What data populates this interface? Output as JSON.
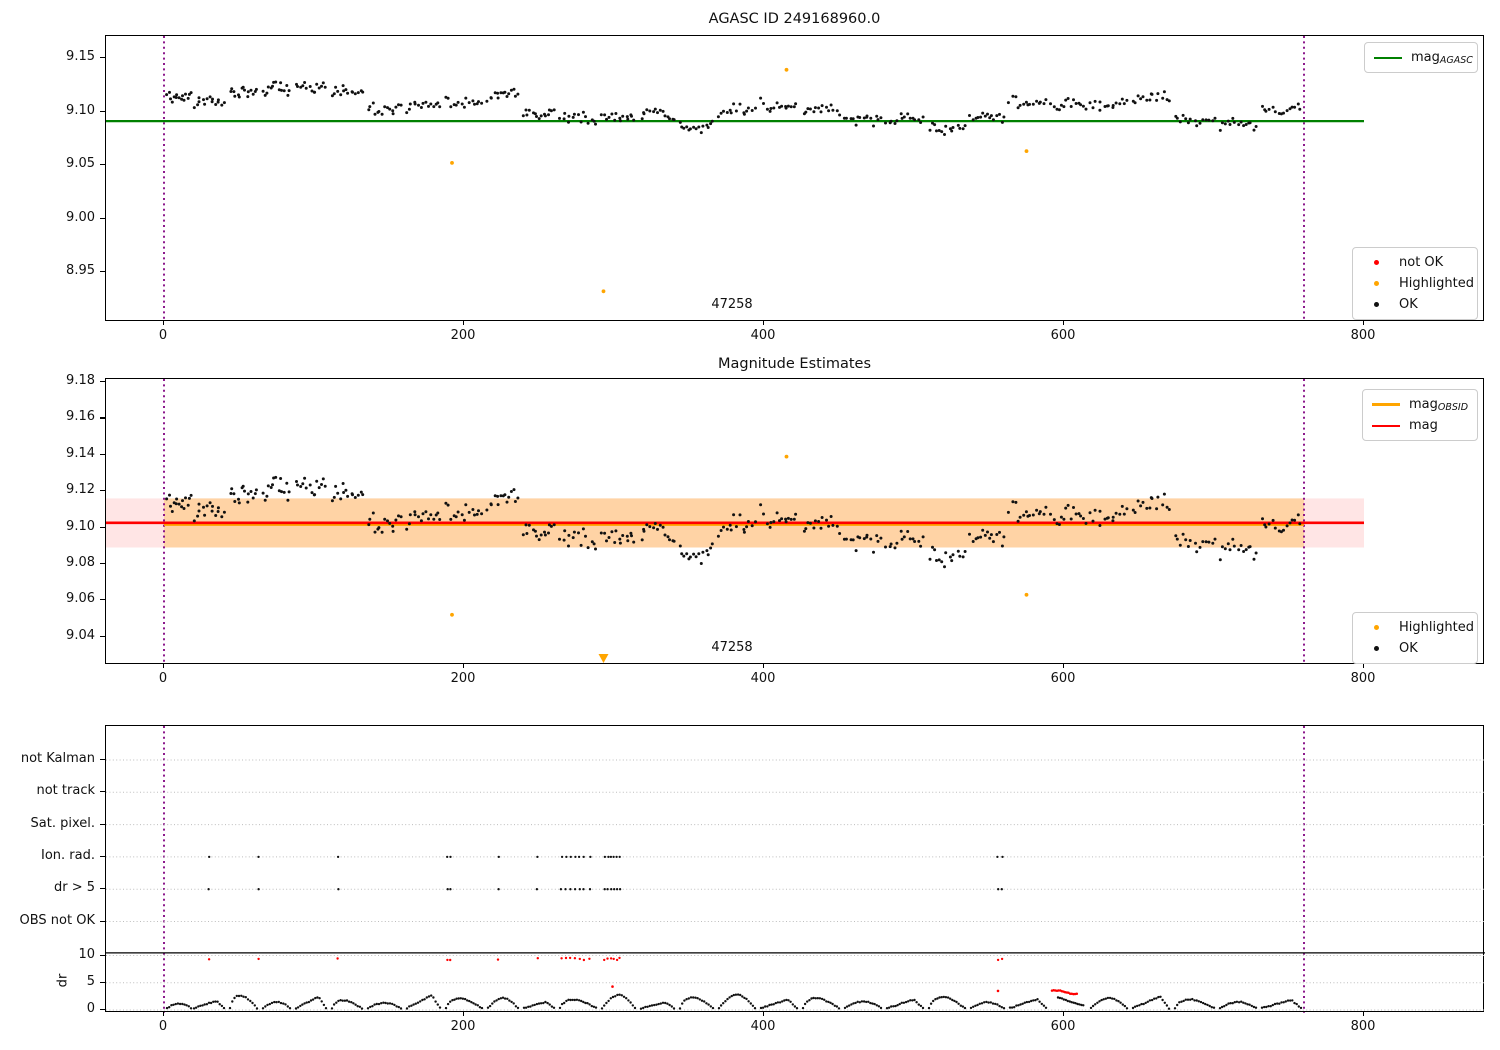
{
  "colors": {
    "mag_agasc": "#008000",
    "mag": "#ff0000",
    "highlighted": "#ffa500",
    "not_ok": "#ff0000",
    "ok": "#111111",
    "obs_window": "#800080",
    "band_outer": "rgba(255,0,0,0.10)",
    "band_inner": "rgba(255,165,0,0.28)",
    "grid": "#bdbdbd",
    "separator": "#000000"
  },
  "chart_data": [
    {
      "id": "mag_agasc_plot",
      "type": "scatter",
      "title": "AGASC ID 249168960.0",
      "ylim": [
        8.903,
        9.1706
      ],
      "xlim": [
        -38.7,
        880.7
      ],
      "yticks": [
        "9.15",
        "9.10",
        "9.05",
        "9.00",
        "8.95"
      ],
      "ytick_values": [
        9.15,
        9.1,
        9.05,
        9.0,
        8.95
      ],
      "xticks": [
        "0",
        "200",
        "400",
        "600",
        "800"
      ],
      "xtick_values": [
        0,
        200,
        400,
        600,
        800
      ],
      "mag_agasc_value": 9.091,
      "hline_span": [
        -38.7,
        800
      ],
      "obs_window_lines": [
        0,
        760
      ],
      "annotation": {
        "text": "47258",
        "x": 379,
        "y": 8.917
      },
      "legend_line": {
        "label_main": "mag",
        "label_sub": "AGASC"
      },
      "legend_points": [
        {
          "label": "not OK",
          "color_key": "not_ok"
        },
        {
          "label": "Highlighted",
          "color_key": "highlighted"
        },
        {
          "label": "OK",
          "color_key": "ok"
        }
      ],
      "highlighted_points": [
        [
          192,
          9.052
        ],
        [
          293,
          8.932
        ],
        [
          415,
          9.139
        ],
        [
          575,
          9.063
        ]
      ],
      "cloud": {
        "note": "observation segments: [x_start, x_end, mean_mag, dr_peak]",
        "points_per_segment": 15,
        "mag_arc_amplitude": 0.004,
        "mag_noise": 0.0065,
        "dr_base": 0.35,
        "dr_noise": 0.13,
        "segments": [
          [
            2,
            18,
            9.116,
            1.3
          ],
          [
            20,
            40,
            9.107,
            1.8
          ],
          [
            44,
            62,
            9.121,
            2.9
          ],
          [
            66,
            84,
            9.119,
            1.6
          ],
          [
            88,
            108,
            9.125,
            2.7
          ],
          [
            112,
            132,
            9.117,
            1.9
          ],
          [
            136,
            158,
            9.104,
            1.4
          ],
          [
            162,
            184,
            9.103,
            3.0
          ],
          [
            188,
            212,
            9.111,
            2.3
          ],
          [
            216,
            236,
            9.114,
            2.4
          ],
          [
            240,
            260,
            9.099,
            1.6
          ],
          [
            264,
            288,
            9.091,
            2.1
          ],
          [
            292,
            314,
            9.098,
            3.0
          ],
          [
            318,
            340,
            9.094,
            1.5
          ],
          [
            344,
            366,
            9.089,
            2.5
          ],
          [
            370,
            394,
            9.098,
            3.1
          ],
          [
            398,
            422,
            9.108,
            2.1
          ],
          [
            426,
            450,
            9.099,
            2.4
          ],
          [
            454,
            478,
            9.095,
            1.7
          ],
          [
            482,
            506,
            9.09,
            2.1
          ],
          [
            510,
            534,
            9.087,
            2.6
          ],
          [
            538,
            560,
            9.093,
            1.5
          ],
          [
            564,
            588,
            9.111,
            2.2
          ],
          [
            592,
            614,
            9.104,
            3.3
          ],
          [
            618,
            642,
            9.109,
            2.4
          ],
          [
            646,
            670,
            9.111,
            2.7
          ],
          [
            674,
            700,
            9.094,
            2.1
          ],
          [
            704,
            728,
            9.087,
            1.6
          ],
          [
            732,
            758,
            9.104,
            2.0
          ]
        ]
      }
    },
    {
      "id": "magnitude_estimates_plot",
      "type": "scatter",
      "title": "Magnitude Estimates",
      "ylim": [
        9.0245,
        9.1816
      ],
      "yticks": [
        "9.18",
        "9.16",
        "9.14",
        "9.12",
        "9.10",
        "9.08",
        "9.06",
        "9.04"
      ],
      "ytick_values": [
        9.18,
        9.16,
        9.14,
        9.12,
        9.1,
        9.08,
        9.06,
        9.04
      ],
      "xticks": [
        "0",
        "200",
        "400",
        "600",
        "800"
      ],
      "xtick_values": [
        0,
        200,
        400,
        600,
        800
      ],
      "mag_value": 9.1026,
      "mag_band": [
        9.089,
        9.116
      ],
      "hline_span": [
        -38.7,
        800
      ],
      "mag_obsid_span": [
        0,
        760
      ],
      "obs_window_lines": [
        0,
        760
      ],
      "annotation": {
        "text": "47258",
        "x": 379,
        "y": 9.031
      },
      "legend_lines": [
        {
          "label_main": "mag",
          "label_sub": "OBSID",
          "color_key": "highlighted"
        },
        {
          "label_main": "mag",
          "label_sub": "",
          "color_key": "mag"
        }
      ],
      "legend_points": [
        {
          "label": "Highlighted",
          "color_key": "highlighted"
        },
        {
          "label": "OK",
          "color_key": "ok"
        }
      ],
      "highlighted_points": [
        [
          192,
          9.052
        ],
        [
          415,
          9.139
        ],
        [
          575,
          9.063
        ]
      ],
      "clipped_low_markers": [
        293
      ]
    },
    {
      "id": "flags_dr_plot",
      "type": "scatter",
      "categories": [
        "not Kalman",
        "not track",
        "Sat. pixel.",
        "Ion. rad.",
        "dr > 5",
        "OBS not OK"
      ],
      "flagged_rows": [
        "Ion. rad.",
        "dr > 5"
      ],
      "flags_x": [
        30,
        63,
        116,
        189,
        191,
        223,
        249,
        265,
        268,
        271,
        274,
        277,
        280,
        284,
        294,
        296,
        298,
        300,
        302,
        304,
        556,
        559
      ],
      "dr_ylabel": "dr",
      "dr_ticks": [
        "10",
        "5",
        "0"
      ],
      "dr_tick_values": [
        10,
        5,
        0
      ],
      "dr_clip_level": 9.6,
      "red_dr_segment": {
        "x0": 592,
        "x1": 609,
        "v_start": 3.55,
        "v_end": 3.0
      },
      "red_dr_points": [
        [
          299,
          4.3
        ],
        [
          556,
          3.5
        ]
      ],
      "xticks": [
        "0",
        "200",
        "400",
        "600",
        "800"
      ],
      "xtick_values": [
        0,
        200,
        400,
        600,
        800
      ],
      "obs_window_lines": [
        0,
        760
      ]
    }
  ]
}
